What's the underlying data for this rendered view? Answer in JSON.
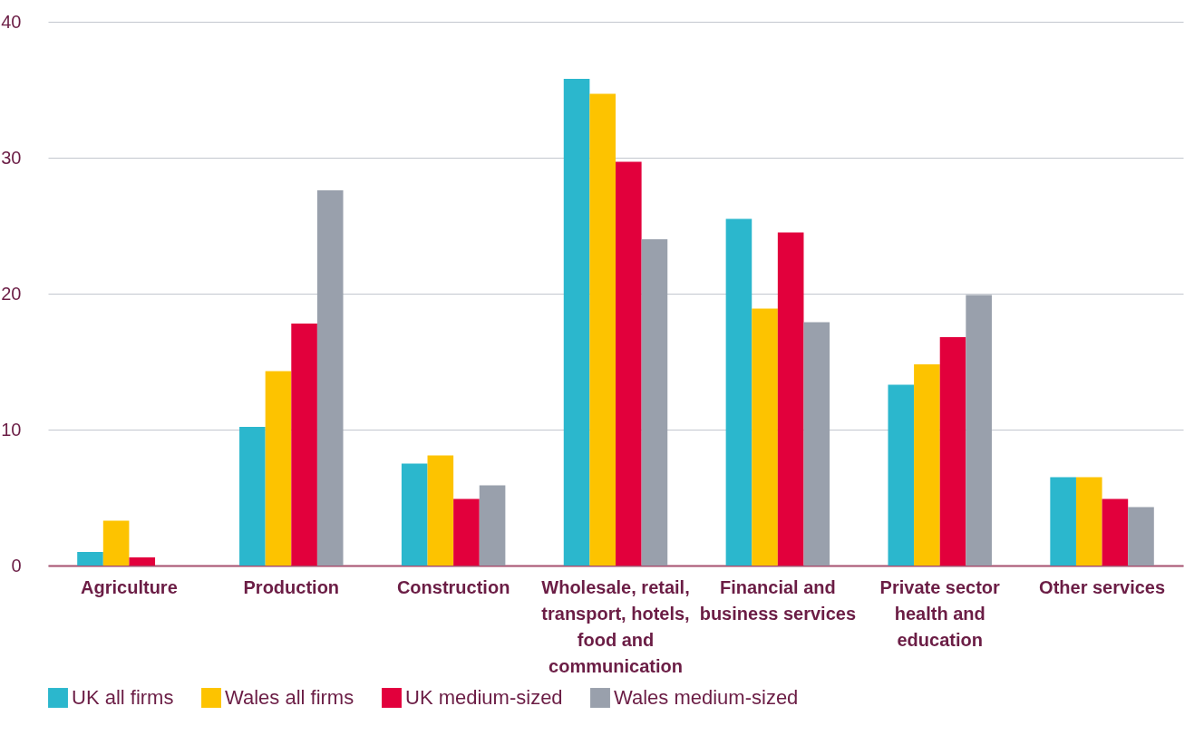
{
  "chart_data": {
    "type": "bar",
    "categories": [
      "Agriculture",
      "Production",
      "Construction",
      "Wholesale, retail, transport, hotels, food and communication",
      "Financial and business services",
      "Private sector health and education",
      "Other services"
    ],
    "series": [
      {
        "name": "UK all firms",
        "color": "#2bb7cd",
        "values": [
          1.0,
          10.2,
          7.5,
          35.8,
          25.5,
          13.3,
          6.5
        ]
      },
      {
        "name": "Wales all firms",
        "color": "#fdc300",
        "values": [
          3.3,
          14.3,
          8.1,
          34.7,
          18.9,
          14.8,
          6.5
        ]
      },
      {
        "name": "UK medium-sized",
        "color": "#e2003c",
        "values": [
          0.6,
          17.8,
          4.9,
          29.7,
          24.5,
          16.8,
          4.9
        ]
      },
      {
        "name": "Wales medium-sized",
        "color": "#99a0ac",
        "values": [
          0,
          27.6,
          5.9,
          24.0,
          17.9,
          19.9,
          4.3
        ]
      }
    ],
    "ylim": [
      0,
      40
    ],
    "yticks": [
      0,
      10,
      20,
      30,
      40
    ],
    "grid": "y",
    "legend": "bottom"
  }
}
